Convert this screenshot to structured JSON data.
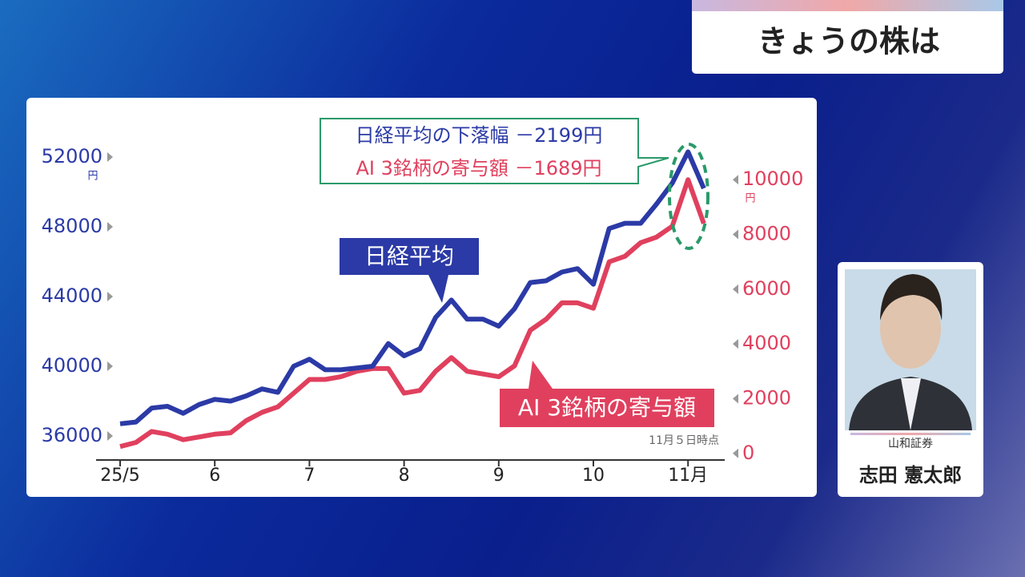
{
  "banner": {
    "title": "きょうの株は"
  },
  "chart_data": {
    "type": "line",
    "categories": [
      "25/5",
      null,
      null,
      null,
      null,
      null,
      "6",
      null,
      null,
      null,
      null,
      null,
      "7",
      null,
      null,
      null,
      null,
      null,
      "8",
      null,
      null,
      null,
      null,
      null,
      "9",
      null,
      null,
      null,
      null,
      null,
      "10",
      null,
      null,
      null,
      null,
      null,
      "11月",
      null
    ],
    "series": [
      {
        "name": "日経平均",
        "color": "#2b3aa6",
        "values": [
          36700,
          36800,
          37600,
          37700,
          37300,
          37800,
          38100,
          38000,
          38300,
          38700,
          38500,
          40000,
          40400,
          39800,
          39800,
          39900,
          40000,
          41300,
          40600,
          41000,
          42800,
          43800,
          42700,
          42700,
          42300,
          43300,
          44800,
          44900,
          45400,
          45600,
          44700,
          47900,
          48200,
          48200,
          49300,
          50500,
          52300,
          50200
        ]
      },
      {
        "name": "AI 3銘柄の寄与額",
        "color": "#e0405e",
        "axis": "y2",
        "values": [
          250,
          400,
          800,
          700,
          500,
          600,
          700,
          750,
          1200,
          1500,
          1700,
          2200,
          2700,
          2700,
          2800,
          3000,
          3100,
          3100,
          2200,
          2300,
          3000,
          3500,
          3000,
          2900,
          2800,
          3200,
          4500,
          4900,
          5500,
          5500,
          5300,
          7000,
          7200,
          7700,
          7900,
          8300,
          10000,
          8400
        ]
      }
    ],
    "ylim": [
      35000,
      54000
    ],
    "yticks": [
      36000,
      40000,
      44000,
      48000,
      52000
    ],
    "y_unit": "円",
    "y2lim": [
      0,
      12100
    ],
    "y2ticks": [
      0,
      2000,
      4000,
      6000,
      8000,
      10000
    ],
    "y2_unit": "円",
    "annotations": [
      "日経平均の下落幅 －2199円",
      "AI 3銘柄の寄与額 －1689円"
    ],
    "note": "11月５日時点"
  },
  "analyst": {
    "company": "山和証券",
    "name": "志田 憲太郎"
  }
}
